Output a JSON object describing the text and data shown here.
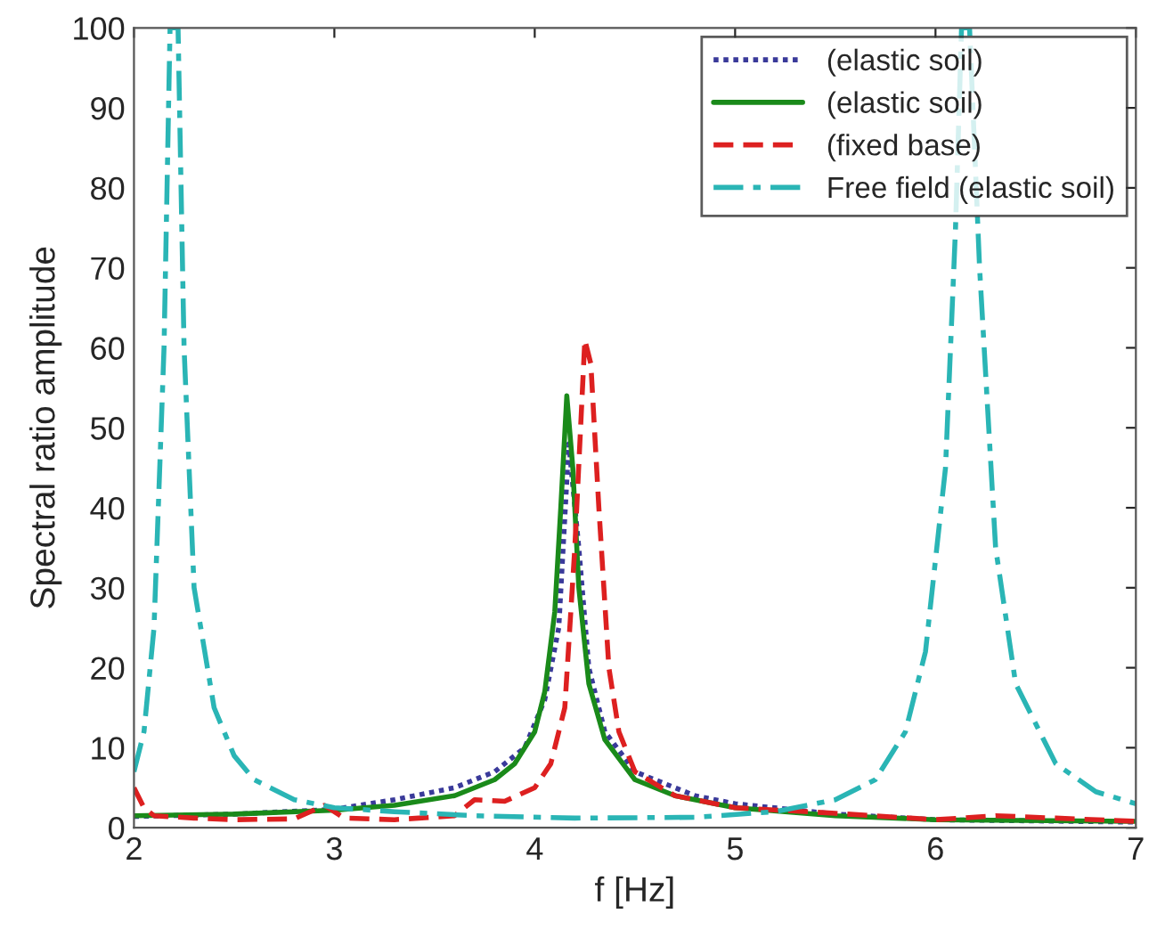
{
  "chart_data": {
    "type": "line",
    "xlabel": "f [Hz]",
    "ylabel": "Spectral ratio amplitude",
    "xlim": [
      2,
      7
    ],
    "ylim": [
      0,
      100
    ],
    "xticks": [
      2,
      3,
      4,
      5,
      6,
      7
    ],
    "yticks": [
      0,
      10,
      20,
      30,
      40,
      50,
      60,
      70,
      80,
      90,
      100
    ],
    "grid": false,
    "legend": "top right",
    "series": [
      {
        "name": "(elastic soil)",
        "color": "#3a3a9a",
        "line_style": "dotted",
        "x": [
          2,
          2.5,
          3,
          3.3,
          3.6,
          3.8,
          3.95,
          4.05,
          4.12,
          4.17,
          4.22,
          4.27,
          4.35,
          4.5,
          4.8,
          5,
          5.5,
          6,
          7
        ],
        "values": [
          1.4,
          1.7,
          2.3,
          3.5,
          5,
          7,
          10,
          16,
          25,
          48,
          35,
          20,
          12,
          7,
          4,
          3,
          1.7,
          1,
          0.7
        ]
      },
      {
        "name": "(elastic soil)",
        "color": "#1a8a1a",
        "line_style": "solid",
        "x": [
          2,
          2.5,
          3,
          3.3,
          3.6,
          3.8,
          3.9,
          4.0,
          4.05,
          4.1,
          4.13,
          4.16,
          4.19,
          4.22,
          4.27,
          4.35,
          4.5,
          4.7,
          5,
          5.5,
          6,
          7
        ],
        "values": [
          1.5,
          1.7,
          2.2,
          2.8,
          4,
          6,
          8,
          12,
          17,
          27,
          40,
          54,
          45,
          30,
          18,
          11,
          6,
          4,
          2.5,
          1.5,
          1,
          0.8
        ]
      },
      {
        "name": "(fixed base)",
        "color": "#dd2020",
        "line_style": "dashed",
        "x": [
          2,
          2.05,
          2.1,
          2.3,
          2.5,
          2.8,
          2.95,
          3.05,
          3.3,
          3.6,
          3.7,
          3.85,
          4.0,
          4.08,
          4.15,
          4.2,
          4.25,
          4.28,
          4.32,
          4.37,
          4.42,
          4.5,
          4.7,
          5,
          5.5,
          6,
          6.3,
          6.6,
          7
        ],
        "values": [
          5,
          2.5,
          1.5,
          1.2,
          1,
          1.1,
          2.8,
          1.2,
          1,
          1.5,
          3.5,
          3.3,
          5,
          8,
          15,
          35,
          61,
          58,
          40,
          20,
          12,
          7,
          4,
          2.5,
          1.8,
          1,
          1.5,
          1.2,
          0.8
        ]
      },
      {
        "name": "Free field (elastic soil)",
        "color": "#2ab5b5",
        "line_style": "dashdot",
        "x": [
          2.0,
          2.05,
          2.1,
          2.15,
          2.18,
          2.22,
          2.25,
          2.3,
          2.4,
          2.5,
          2.6,
          2.8,
          3.0,
          3.3,
          3.7,
          4.2,
          4.8,
          5.2,
          5.5,
          5.7,
          5.85,
          5.95,
          6.05,
          6.1,
          6.13,
          6.17,
          6.22,
          6.3,
          6.4,
          6.6,
          6.8,
          7.0
        ],
        "values": [
          7,
          12,
          25,
          60,
          100,
          100,
          60,
          30,
          15,
          9,
          6,
          3.5,
          2.5,
          2,
          1.5,
          1.2,
          1.3,
          2,
          3.5,
          6,
          12,
          22,
          45,
          75,
          100,
          100,
          70,
          35,
          18,
          8,
          4.5,
          3
        ]
      }
    ]
  }
}
